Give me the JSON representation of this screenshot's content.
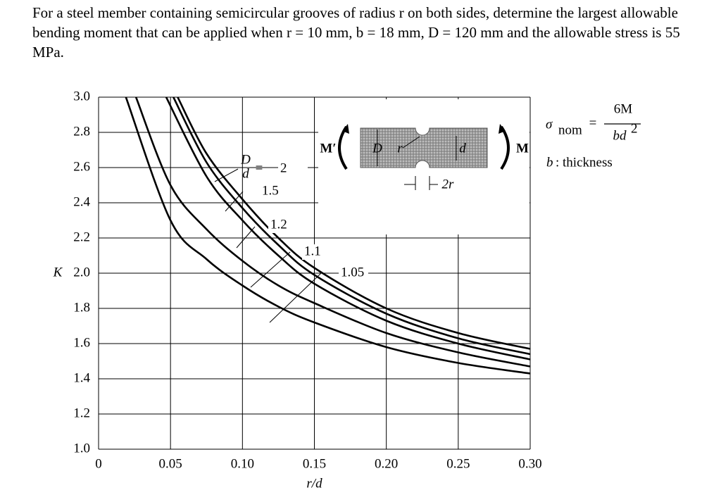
{
  "problem": "For a steel member containing semicircular grooves of radius r on both sides, determine the largest allowable bending moment that can be applied when r = 10 mm, b = 18 mm, D = 120 mm and the allowable stress is 55 MPa.",
  "chart_data": {
    "type": "line",
    "xlabel": "r/d",
    "ylabel": "K",
    "xlim": [
      0,
      0.3
    ],
    "ylim": [
      1.0,
      3.0
    ],
    "xticks": [
      0,
      0.05,
      {
        "value": 0.1,
        "label": "0.10"
      },
      0.15,
      {
        "value": 0.2,
        "label": "0.20"
      },
      0.25,
      {
        "value": 0.3,
        "label": "0.30"
      }
    ],
    "yticks": [
      {
        "value": 1.0,
        "label": "1.0"
      },
      1.2,
      1.4,
      1.6,
      1.8,
      {
        "value": 2.0,
        "label": "2.0"
      },
      2.2,
      2.4,
      2.6,
      2.8,
      {
        "value": 3.0,
        "label": "3.0"
      }
    ],
    "grid": true,
    "color": "#000000",
    "curve_label_prefix": {
      "numerator": "D",
      "denominator": "d",
      "equals": "="
    },
    "series": [
      {
        "name": "2",
        "x": [
          0.055,
          0.075,
          0.1,
          0.125,
          0.15,
          0.2,
          0.25,
          0.3
        ],
        "values": [
          3.0,
          2.68,
          2.42,
          2.2,
          2.03,
          1.8,
          1.66,
          1.57
        ]
      },
      {
        "name": "1.5",
        "x": [
          0.052,
          0.075,
          0.1,
          0.125,
          0.15,
          0.2,
          0.25,
          0.3
        ],
        "values": [
          3.0,
          2.63,
          2.37,
          2.16,
          1.99,
          1.77,
          1.63,
          1.54
        ]
      },
      {
        "name": "1.2",
        "x": [
          0.047,
          0.075,
          0.1,
          0.125,
          0.15,
          0.2,
          0.25,
          0.3
        ],
        "values": [
          3.0,
          2.55,
          2.3,
          2.1,
          1.94,
          1.73,
          1.6,
          1.51
        ]
      },
      {
        "name": "1.1",
        "x": [
          0.026,
          0.05,
          0.075,
          0.1,
          0.125,
          0.15,
          0.2,
          0.25,
          0.3
        ],
        "values": [
          3.0,
          2.5,
          2.25,
          2.07,
          1.93,
          1.83,
          1.66,
          1.55,
          1.47
        ]
      },
      {
        "name": "1.05",
        "x": [
          0.019,
          0.05,
          0.075,
          0.1,
          0.125,
          0.15,
          0.2,
          0.25,
          0.3
        ],
        "values": [
          3.0,
          2.3,
          2.08,
          1.93,
          1.81,
          1.72,
          1.58,
          1.49,
          1.43
        ]
      }
    ],
    "inset": {
      "moment_left": "M′",
      "moment_right": "M",
      "outer_depth": "D",
      "inner_depth": "d",
      "radius": "r",
      "groove_width": "2r"
    },
    "formula": {
      "lhs": "σ",
      "lhs_sub": "nom",
      "equals": "=",
      "numerator": "6M",
      "denominator": "bd",
      "denominator_sup": "2"
    },
    "note": {
      "variable": "b",
      "text": ": thickness"
    }
  }
}
